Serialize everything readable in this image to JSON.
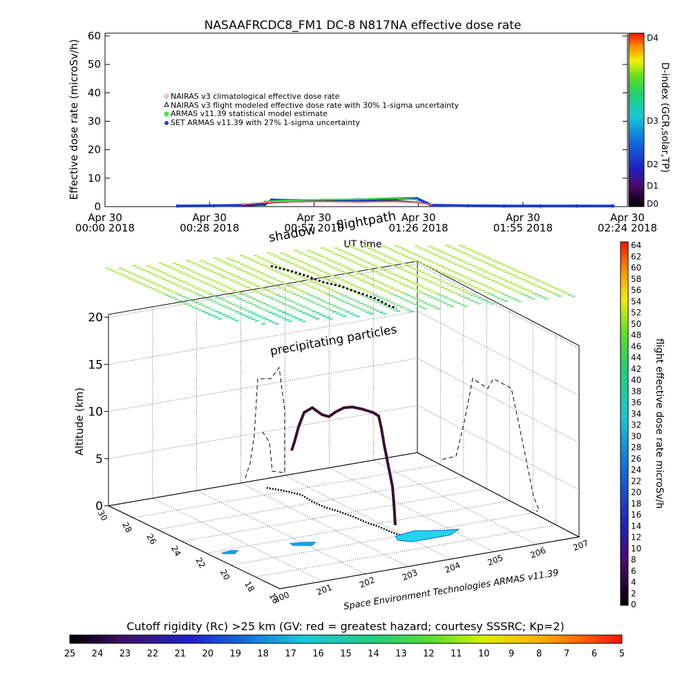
{
  "top_chart": {
    "title": "NASAAFRCDC8_FM1 DC-8    N817NA effective dose rate",
    "ylabel": "Effective dose rate (microSv/h)",
    "xlabel": "UT time",
    "y_ticks": [
      "0",
      "10",
      "20",
      "30",
      "40",
      "50",
      "60"
    ],
    "x_ticks": [
      {
        "line1": "Apr 30",
        "line2": "00:00 2018"
      },
      {
        "line1": "Apr 30",
        "line2": "00:28 2018"
      },
      {
        "line1": "Apr 30",
        "line2": "00:57 2018"
      },
      {
        "line1": "Apr 30",
        "line2": "01:26 2018"
      },
      {
        "line1": "Apr 30",
        "line2": "01:55 2018"
      },
      {
        "line1": "Apr 30",
        "line2": "02:24 2018"
      }
    ],
    "legend": [
      {
        "label": "NAIRAS v3 climatological effective dose rate",
        "color": "#e07070",
        "marker": "diamond"
      },
      {
        "label": "NAIRAS v3 flight modeled effective dose rate with 30% 1-sigma uncertainty",
        "color": "#000000",
        "marker": "triangle"
      },
      {
        "label": "ARMAS v11.39 statistical model estimate",
        "color": "#44dd44",
        "marker": "star"
      },
      {
        "label": "SET ARMAS v11.39 with 27% 1-sigma uncertainty",
        "color": "#1a3cd6",
        "marker": "dot"
      }
    ],
    "dindex_label": "D-index (GCR,solar,TP)",
    "dindex_ticks": [
      "D4",
      "D3",
      "D2",
      "D1",
      "D0"
    ]
  },
  "chart_data": [
    {
      "type": "scatter",
      "title": "NASAAFRCDC8_FM1 DC-8    N817NA effective dose rate",
      "xlabel": "UT time",
      "ylabel": "Effective dose rate (microSv/h)",
      "ylim": [
        0,
        60
      ],
      "xlim": [
        "Apr 30 00:00 2018",
        "Apr 30 02:24 2018"
      ],
      "x_unit": "minutes",
      "series": [
        {
          "name": "SET ARMAS v11.39 with 27% 1-sigma uncertainty",
          "x": [
            20,
            30,
            38,
            44,
            46,
            50,
            60,
            70,
            80,
            86,
            90,
            100,
            110,
            120,
            130,
            140
          ],
          "y": [
            0.2,
            0.3,
            0.5,
            0.8,
            2.3,
            2.2,
            2.1,
            2.4,
            2.8,
            2.8,
            0.5,
            0.3,
            0.2,
            0.2,
            0.2,
            0.2
          ]
        },
        {
          "name": "ARMAS v11.39 statistical model estimate",
          "x": [
            44,
            50,
            60,
            70,
            80,
            86
          ],
          "y": [
            1.8,
            2.2,
            2.5,
            2.6,
            3.0,
            2.4
          ]
        },
        {
          "name": "NAIRAS v3 flight modeled effective dose rate with 30% 1-sigma uncertainty",
          "x": [
            38,
            44,
            50,
            60,
            70,
            80,
            86,
            90
          ],
          "y": [
            0.6,
            1.2,
            1.6,
            1.9,
            1.7,
            2.0,
            1.5,
            0.6
          ]
        },
        {
          "name": "NAIRAS v3 climatological effective dose rate",
          "x": [
            38,
            44,
            50,
            60,
            70,
            80,
            86,
            90
          ],
          "y": [
            0.8,
            1.4,
            1.7,
            1.8,
            1.6,
            1.8,
            1.4,
            0.7
          ]
        }
      ]
    },
    {
      "type": "scatter",
      "xlabel": "",
      "ylabel": "Altitude (km)",
      "z_ticks": [
        "0",
        "5",
        "10",
        "15",
        "20"
      ],
      "lat_ticks": [
        "30",
        "28",
        "26",
        "24",
        "22",
        "20",
        "18",
        "16"
      ],
      "lon_ticks": [
        "200",
        "201",
        "202",
        "203",
        "204",
        "205",
        "206",
        "207"
      ],
      "annotations": [
        "shadow",
        "flightpath",
        "precipitating particles"
      ]
    }
  ],
  "main3d": {
    "label_shadow": "shadow",
    "label_flightpath": "flightpath",
    "label_precip": "precipitating particles",
    "axis_label": "Altitude (km)",
    "footer": "Space Environment Technologies ARMAS v11.39",
    "z_ticks": [
      "0",
      "5",
      "10",
      "15",
      "20"
    ],
    "lat_ticks": [
      "30",
      "28",
      "26",
      "24",
      "22",
      "20",
      "18",
      "16"
    ],
    "lon_ticks": [
      "200",
      "201",
      "202",
      "203",
      "204",
      "205",
      "206",
      "207"
    ]
  },
  "right_colorbar": {
    "label": "flight effective dose rate microSv/h",
    "ticks": [
      "64",
      "62",
      "60",
      "58",
      "56",
      "54",
      "52",
      "50",
      "48",
      "46",
      "44",
      "42",
      "40",
      "38",
      "36",
      "34",
      "32",
      "30",
      "28",
      "26",
      "24",
      "22",
      "20",
      "18",
      "16",
      "14",
      "12",
      "10",
      "8",
      "6",
      "4",
      "2",
      "0"
    ]
  },
  "bottom_colorbar": {
    "title": "Cutoff rigidity (Rc) >25 km (GV: red = greatest hazard; courtesy SSSRC; Kp=2)",
    "ticks": [
      "25",
      "24",
      "23",
      "22",
      "21",
      "20",
      "19",
      "18",
      "17",
      "16",
      "15",
      "14",
      "13",
      "12",
      "11",
      "10",
      "9",
      "8",
      "7",
      "6",
      "5"
    ]
  }
}
